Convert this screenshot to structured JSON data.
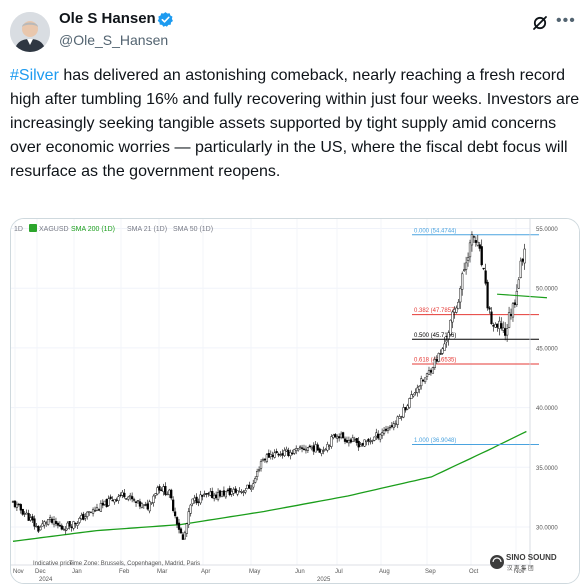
{
  "post": {
    "display_name": "Ole S Hansen",
    "handle": "@Ole_S_Hansen",
    "hashtag": "#Silver",
    "text": " has delivered an astonishing comeback, nearly reaching a fresh record high after tumbling 16% and fully recovering within just four weeks. Investors are increasingly seeking tangible assets supported by tight supply amid concerns over economic worries — particularly in the US, where the fiscal debt focus will resurface as the government reopens."
  },
  "icons": {
    "verified": "verified-badge-icon",
    "grok": "grok-icon",
    "more": "more-options-icon"
  },
  "chart": {
    "timeframe": "1D",
    "symbol": "XAGUSD",
    "legend": {
      "sma200": "SMA 200 (1D)",
      "sma21": "SMA 21 (1D)",
      "sma50": "SMA 50 (1D)"
    },
    "fib": {
      "f0": "0.000 (54.4744)",
      "f382": "0.382 (47.7857)",
      "f500": "0.500 (45.7196)",
      "f618": "0.618 (43.6535)",
      "f100": "1.000 (36.9048)"
    },
    "footer_left": "Indicative price",
    "timezone": "Time Zone: Brussels, Copenhagen, Madrid, Paris",
    "watermark": "SINO SOUND",
    "watermark_cn": "汉 声 集 团",
    "colors": {
      "up": "#ffffff",
      "down": "#000000",
      "sma200": "#1b9e1b",
      "fib_blue": "#4aa3df",
      "fib_red": "#e53935",
      "fib_black": "#000000"
    }
  },
  "chart_data": {
    "type": "candlestick",
    "y_ticks": [
      "55.0000",
      "50.0000",
      "45.0000",
      "40.0000",
      "35.0000",
      "30.0000"
    ],
    "ylim": [
      28,
      56
    ],
    "x_ticks": [
      "Nov",
      "Dec",
      "Jan",
      "Feb",
      "Mar",
      "Apr",
      "May",
      "Jun",
      "Jul",
      "Aug",
      "Sep",
      "Oct",
      "Nov"
    ],
    "x_year_labels": [
      "2024",
      "2025"
    ],
    "close_anchors": [
      [
        0,
        32.0
      ],
      [
        10,
        31.0
      ],
      [
        18,
        29.8
      ],
      [
        25,
        30.6
      ],
      [
        35,
        29.9
      ],
      [
        45,
        30.4
      ],
      [
        55,
        31.2
      ],
      [
        65,
        31.8
      ],
      [
        72,
        32.4
      ],
      [
        80,
        32.8
      ],
      [
        88,
        32.0
      ],
      [
        96,
        31.6
      ],
      [
        104,
        33.4
      ],
      [
        112,
        32.8
      ],
      [
        118,
        30.3
      ],
      [
        122,
        28.8
      ],
      [
        128,
        32.1
      ],
      [
        135,
        32.5
      ],
      [
        145,
        32.7
      ],
      [
        155,
        32.9
      ],
      [
        165,
        33.1
      ],
      [
        172,
        33.5
      ],
      [
        178,
        35.6
      ],
      [
        185,
        36.1
      ],
      [
        195,
        36.2
      ],
      [
        205,
        36.4
      ],
      [
        212,
        36.7
      ],
      [
        222,
        36.5
      ],
      [
        232,
        37.8
      ],
      [
        240,
        37.3
      ],
      [
        250,
        36.9
      ],
      [
        258,
        37.4
      ],
      [
        265,
        38.0
      ],
      [
        275,
        38.8
      ],
      [
        282,
        40.2
      ],
      [
        290,
        41.8
      ],
      [
        296,
        42.5
      ],
      [
        302,
        43.8
      ],
      [
        308,
        44.8
      ],
      [
        314,
        47.2
      ],
      [
        318,
        48.6
      ],
      [
        322,
        50.8
      ],
      [
        326,
        53.0
      ],
      [
        330,
        54.4
      ],
      [
        334,
        53.2
      ],
      [
        337,
        51.5
      ],
      [
        340,
        48.8
      ],
      [
        343,
        47.2
      ],
      [
        346,
        46.4
      ],
      [
        350,
        46.9
      ],
      [
        353,
        46.2
      ],
      [
        356,
        47.8
      ],
      [
        359,
        48.6
      ],
      [
        362,
        50.6
      ],
      [
        365,
        52.5
      ],
      [
        368,
        53.8
      ]
    ],
    "series": [
      {
        "name": "SMA 200 (1D)",
        "anchors": [
          [
            0,
            28.8
          ],
          [
            60,
            29.7
          ],
          [
            120,
            30.2
          ],
          [
            180,
            31.3
          ],
          [
            240,
            32.6
          ],
          [
            300,
            34.2
          ],
          [
            340,
            36.4
          ],
          [
            368,
            38.0
          ]
        ]
      },
      {
        "name": "SMA 50 (1D)",
        "anchors": [
          [
            347,
            49.5
          ],
          [
            368,
            49.2
          ]
        ]
      }
    ],
    "fib_levels": [
      {
        "ratio": "0.000",
        "value": 54.4744
      },
      {
        "ratio": "0.382",
        "value": 47.7857
      },
      {
        "ratio": "0.500",
        "value": 45.7196
      },
      {
        "ratio": "0.618",
        "value": 43.6535
      },
      {
        "ratio": "1.000",
        "value": 36.9048
      }
    ]
  }
}
